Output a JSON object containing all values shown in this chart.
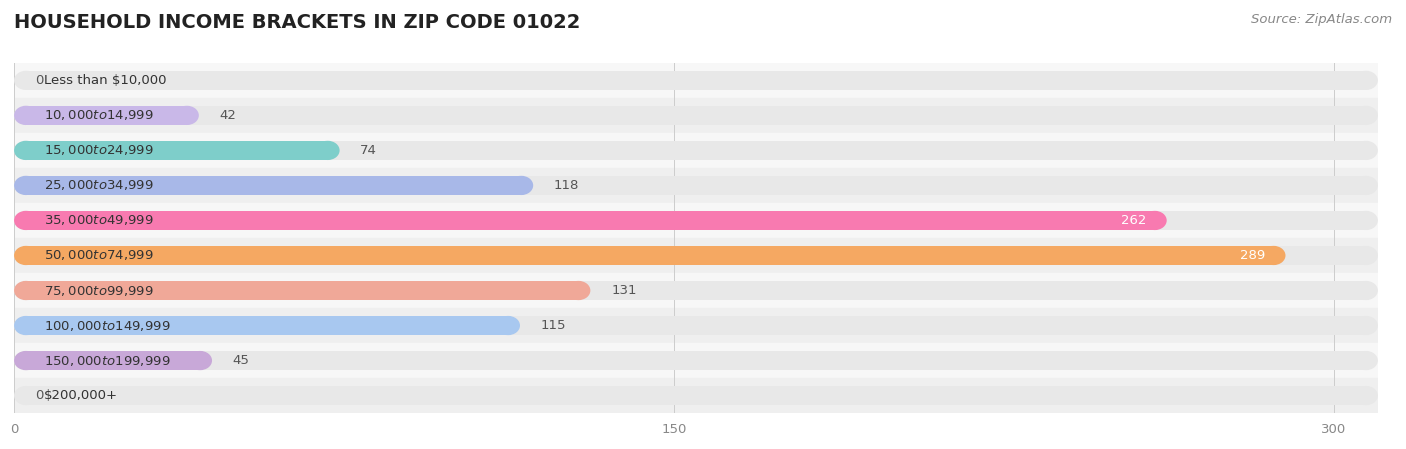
{
  "title": "HOUSEHOLD INCOME BRACKETS IN ZIP CODE 01022",
  "source": "Source: ZipAtlas.com",
  "categories": [
    "Less than $10,000",
    "$10,000 to $14,999",
    "$15,000 to $24,999",
    "$25,000 to $34,999",
    "$35,000 to $49,999",
    "$50,000 to $74,999",
    "$75,000 to $99,999",
    "$100,000 to $149,999",
    "$150,000 to $199,999",
    "$200,000+"
  ],
  "values": [
    0,
    42,
    74,
    118,
    262,
    289,
    131,
    115,
    45,
    0
  ],
  "bar_colors": [
    "#a8d8ea",
    "#c9b8e8",
    "#7ececa",
    "#a8b8e8",
    "#f87ab0",
    "#f5a862",
    "#f0a898",
    "#a8c8f0",
    "#c8a8d8",
    "#7ececa"
  ],
  "bar_bg_color": "#e8e8e8",
  "xlim_max": 310,
  "xticks": [
    0,
    150,
    300
  ],
  "title_fontsize": 14,
  "label_fontsize": 9.5,
  "value_fontsize": 9.5,
  "source_fontsize": 9.5,
  "fig_bg_color": "#ffffff",
  "bar_height": 0.55,
  "row_bg_color_odd": "#f7f7f7",
  "row_bg_color_even": "#efefef"
}
